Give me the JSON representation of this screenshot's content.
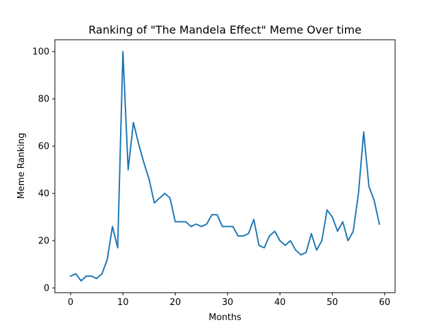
{
  "chart_data": {
    "type": "line",
    "title": "Ranking of \"The Mandela Effect\" Meme Over time",
    "xlabel": "Months",
    "ylabel": "Meme Ranking",
    "xlim": [
      -3,
      62
    ],
    "ylim": [
      -2,
      105
    ],
    "xticks": [
      0,
      10,
      20,
      30,
      40,
      50,
      60
    ],
    "yticks": [
      0,
      20,
      40,
      60,
      80,
      100
    ],
    "grid": false,
    "legend": "none",
    "series": [
      {
        "color": "#1f77b4",
        "x": [
          0,
          1,
          2,
          3,
          4,
          5,
          6,
          7,
          8,
          9,
          10,
          11,
          12,
          13,
          14,
          15,
          16,
          17,
          18,
          19,
          20,
          21,
          22,
          23,
          24,
          25,
          26,
          27,
          28,
          29,
          30,
          31,
          32,
          33,
          34,
          35,
          36,
          37,
          38,
          39,
          40,
          41,
          42,
          43,
          44,
          45,
          46,
          47,
          48,
          49,
          50,
          51,
          52,
          53,
          54,
          55,
          56,
          57,
          58,
          59
        ],
        "values": [
          5,
          6,
          3,
          5,
          5,
          4,
          6,
          12,
          26,
          17,
          100,
          50,
          70,
          61,
          53,
          46,
          36,
          38,
          40,
          38,
          28,
          28,
          28,
          26,
          27,
          26,
          27,
          31,
          31,
          26,
          26,
          26,
          22,
          22,
          23,
          29,
          18,
          17,
          22,
          24,
          20,
          18,
          20,
          16,
          14,
          15,
          23,
          16,
          20,
          33,
          30,
          24,
          28,
          20,
          24,
          40,
          66,
          43,
          37,
          27
        ]
      }
    ]
  }
}
